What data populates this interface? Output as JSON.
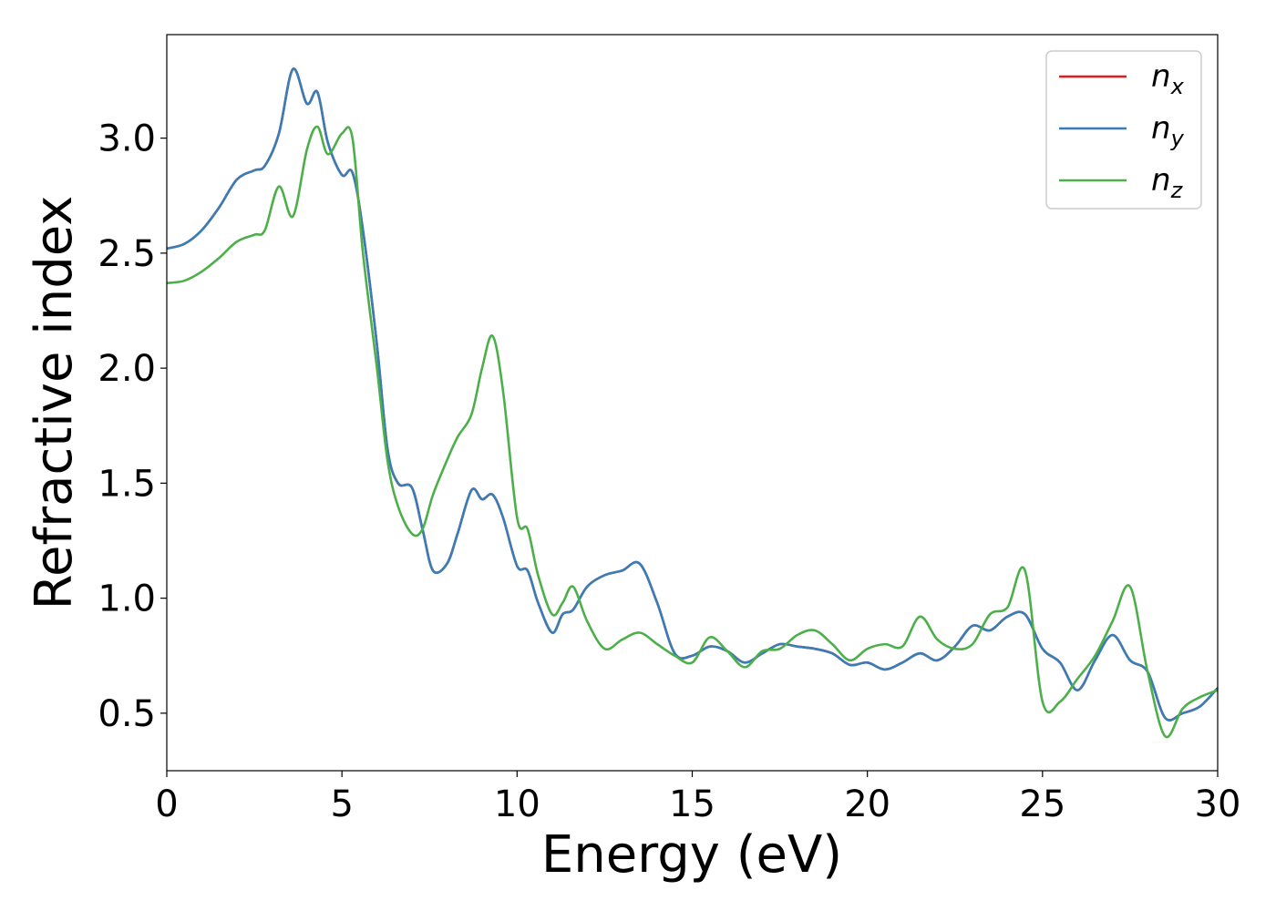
{
  "chart_data": {
    "type": "line",
    "xlabel": "Energy (eV)",
    "ylabel": "Refractive index",
    "xlim": [
      0,
      30
    ],
    "ylim": [
      0.25,
      3.45
    ],
    "xticks": [
      "0",
      "5",
      "10",
      "15",
      "20",
      "25",
      "30"
    ],
    "yticks": [
      "0.5",
      "1.0",
      "1.5",
      "2.0",
      "2.5",
      "3.0"
    ],
    "grid": false,
    "legend_position": "top-right",
    "series": [
      {
        "name": "n",
        "subscript": "x",
        "color": "#e41a1c",
        "x": [
          0,
          0.5,
          1,
          1.5,
          2,
          2.5,
          2.8,
          3.2,
          3.6,
          4.0,
          4.3,
          4.6,
          5.0,
          5.3,
          5.6,
          6.0,
          6.3,
          6.6,
          7.0,
          7.3,
          7.6,
          8.0,
          8.3,
          8.7,
          9.0,
          9.3,
          9.6,
          10.0,
          10.3,
          10.6,
          11.0,
          11.3,
          11.6,
          12.0,
          12.5,
          13.0,
          13.5,
          14.0,
          14.5,
          15.0,
          15.5,
          16.0,
          16.5,
          17.0,
          17.5,
          18.0,
          18.5,
          19.0,
          19.5,
          20.0,
          20.5,
          21.0,
          21.5,
          22.0,
          22.5,
          23.0,
          23.5,
          24.0,
          24.5,
          25.0,
          25.5,
          26.0,
          26.5,
          27.0,
          27.5,
          28.0,
          28.5,
          29.0,
          29.5,
          30.0
        ],
        "values": [
          2.52,
          2.54,
          2.6,
          2.7,
          2.82,
          2.86,
          2.88,
          3.02,
          3.3,
          3.15,
          3.2,
          2.98,
          2.84,
          2.85,
          2.6,
          2.1,
          1.65,
          1.5,
          1.48,
          1.3,
          1.12,
          1.15,
          1.28,
          1.47,
          1.43,
          1.45,
          1.35,
          1.14,
          1.12,
          0.98,
          0.85,
          0.93,
          0.95,
          1.05,
          1.1,
          1.12,
          1.15,
          0.98,
          0.76,
          0.75,
          0.79,
          0.77,
          0.72,
          0.76,
          0.8,
          0.79,
          0.78,
          0.76,
          0.71,
          0.72,
          0.69,
          0.72,
          0.76,
          0.73,
          0.79,
          0.88,
          0.86,
          0.92,
          0.93,
          0.78,
          0.72,
          0.6,
          0.73,
          0.84,
          0.73,
          0.68,
          0.48,
          0.5,
          0.53,
          0.61
        ]
      },
      {
        "name": "n",
        "subscript": "y",
        "color": "#377eb8",
        "x": [
          0,
          0.5,
          1,
          1.5,
          2,
          2.5,
          2.8,
          3.2,
          3.6,
          4.0,
          4.3,
          4.6,
          5.0,
          5.3,
          5.6,
          6.0,
          6.3,
          6.6,
          7.0,
          7.3,
          7.6,
          8.0,
          8.3,
          8.7,
          9.0,
          9.3,
          9.6,
          10.0,
          10.3,
          10.6,
          11.0,
          11.3,
          11.6,
          12.0,
          12.5,
          13.0,
          13.5,
          14.0,
          14.5,
          15.0,
          15.5,
          16.0,
          16.5,
          17.0,
          17.5,
          18.0,
          18.5,
          19.0,
          19.5,
          20.0,
          20.5,
          21.0,
          21.5,
          22.0,
          22.5,
          23.0,
          23.5,
          24.0,
          24.5,
          25.0,
          25.5,
          26.0,
          26.5,
          27.0,
          27.5,
          28.0,
          28.5,
          29.0,
          29.5,
          30.0
        ],
        "values": [
          2.52,
          2.54,
          2.6,
          2.7,
          2.82,
          2.86,
          2.88,
          3.02,
          3.3,
          3.15,
          3.2,
          2.98,
          2.84,
          2.85,
          2.6,
          2.1,
          1.65,
          1.5,
          1.48,
          1.3,
          1.12,
          1.15,
          1.28,
          1.47,
          1.43,
          1.45,
          1.35,
          1.14,
          1.12,
          0.98,
          0.85,
          0.93,
          0.95,
          1.05,
          1.1,
          1.12,
          1.15,
          0.98,
          0.76,
          0.75,
          0.79,
          0.77,
          0.72,
          0.76,
          0.8,
          0.79,
          0.78,
          0.76,
          0.71,
          0.72,
          0.69,
          0.72,
          0.76,
          0.73,
          0.79,
          0.88,
          0.86,
          0.92,
          0.93,
          0.78,
          0.72,
          0.6,
          0.73,
          0.84,
          0.73,
          0.68,
          0.48,
          0.5,
          0.53,
          0.61
        ]
      },
      {
        "name": "n",
        "subscript": "z",
        "color": "#4daf4a",
        "x": [
          0,
          0.5,
          1,
          1.5,
          2,
          2.5,
          2.8,
          3.2,
          3.6,
          4.0,
          4.3,
          4.6,
          5.0,
          5.3,
          5.6,
          6.0,
          6.3,
          6.6,
          7.0,
          7.3,
          7.6,
          8.0,
          8.3,
          8.7,
          9.0,
          9.3,
          9.6,
          10.0,
          10.3,
          10.6,
          11.0,
          11.3,
          11.6,
          12.0,
          12.5,
          13.0,
          13.5,
          14.0,
          14.5,
          15.0,
          15.5,
          16.0,
          16.5,
          17.0,
          17.5,
          18.0,
          18.5,
          19.0,
          19.5,
          20.0,
          20.5,
          21.0,
          21.5,
          22.0,
          22.5,
          23.0,
          23.5,
          24.0,
          24.5,
          25.0,
          25.5,
          26.0,
          26.5,
          27.0,
          27.5,
          28.0,
          28.5,
          29.0,
          29.5,
          30.0
        ],
        "values": [
          2.37,
          2.38,
          2.42,
          2.48,
          2.55,
          2.58,
          2.6,
          2.79,
          2.66,
          2.95,
          3.05,
          2.93,
          3.02,
          3.0,
          2.5,
          2.0,
          1.6,
          1.4,
          1.28,
          1.3,
          1.45,
          1.6,
          1.7,
          1.8,
          2.0,
          2.14,
          1.9,
          1.35,
          1.3,
          1.1,
          0.93,
          0.98,
          1.05,
          0.9,
          0.78,
          0.82,
          0.85,
          0.8,
          0.75,
          0.72,
          0.83,
          0.77,
          0.7,
          0.77,
          0.78,
          0.84,
          0.86,
          0.8,
          0.73,
          0.78,
          0.8,
          0.79,
          0.92,
          0.82,
          0.78,
          0.8,
          0.93,
          0.96,
          1.12,
          0.55,
          0.55,
          0.65,
          0.75,
          0.9,
          1.05,
          0.68,
          0.4,
          0.52,
          0.57,
          0.6
        ]
      }
    ]
  }
}
